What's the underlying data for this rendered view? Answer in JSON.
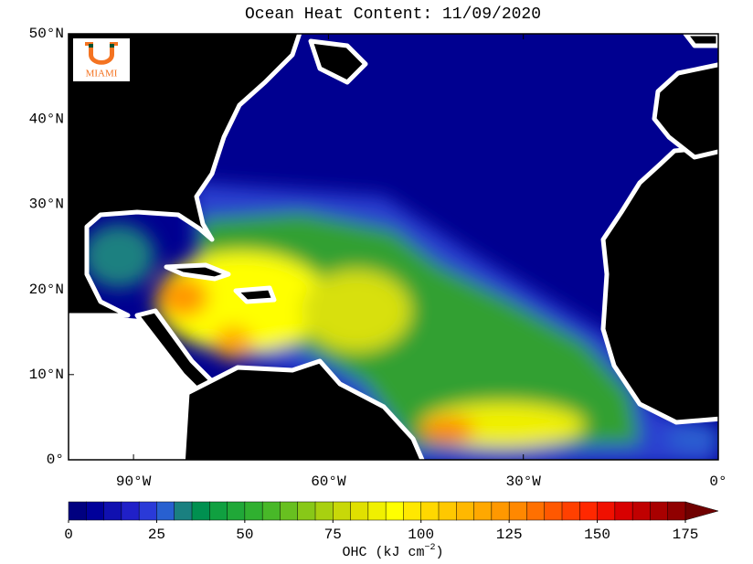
{
  "title": "Ocean Heat Content: 11/09/2020",
  "logo": {
    "text": "MIAMI"
  },
  "map": {
    "xlim": [
      -100,
      0
    ],
    "ylim": [
      0,
      50
    ],
    "xticks": [
      {
        "value": -90,
        "label": "90°W"
      },
      {
        "value": -60,
        "label": "60°W"
      },
      {
        "value": -30,
        "label": "30°W"
      },
      {
        "value": 0,
        "label": "0°"
      }
    ],
    "yticks": [
      {
        "value": 0,
        "label": "0°"
      },
      {
        "value": 10,
        "label": "10°N"
      },
      {
        "value": 20,
        "label": "20°N"
      },
      {
        "value": 30,
        "label": "30°N"
      },
      {
        "value": 40,
        "label": "40°N"
      },
      {
        "value": 50,
        "label": "50°N"
      }
    ]
  },
  "colorbar": {
    "lim": [
      0,
      175
    ],
    "colors": [
      "#000080",
      "#00009a",
      "#1010b0",
      "#2020c8",
      "#2a3ad8",
      "#2860d0",
      "#1a8080",
      "#009050",
      "#10a040",
      "#20a838",
      "#30b030",
      "#48b828",
      "#68c020",
      "#88c818",
      "#a8d010",
      "#c8d808",
      "#e0e000",
      "#f0f000",
      "#ffff00",
      "#ffe800",
      "#ffd800",
      "#ffc800",
      "#ffb800",
      "#ffa800",
      "#ff9800",
      "#ff8800",
      "#ff7000",
      "#ff5800",
      "#ff4000",
      "#ff2800",
      "#f01000",
      "#d80000",
      "#c00000",
      "#a80000",
      "#900000"
    ],
    "over_color": "#700000",
    "ticks": [
      0,
      25,
      50,
      75,
      100,
      125,
      150,
      175
    ],
    "label": "OHC (kJ cm",
    "label_sup": "−2",
    "label_end": ")"
  }
}
